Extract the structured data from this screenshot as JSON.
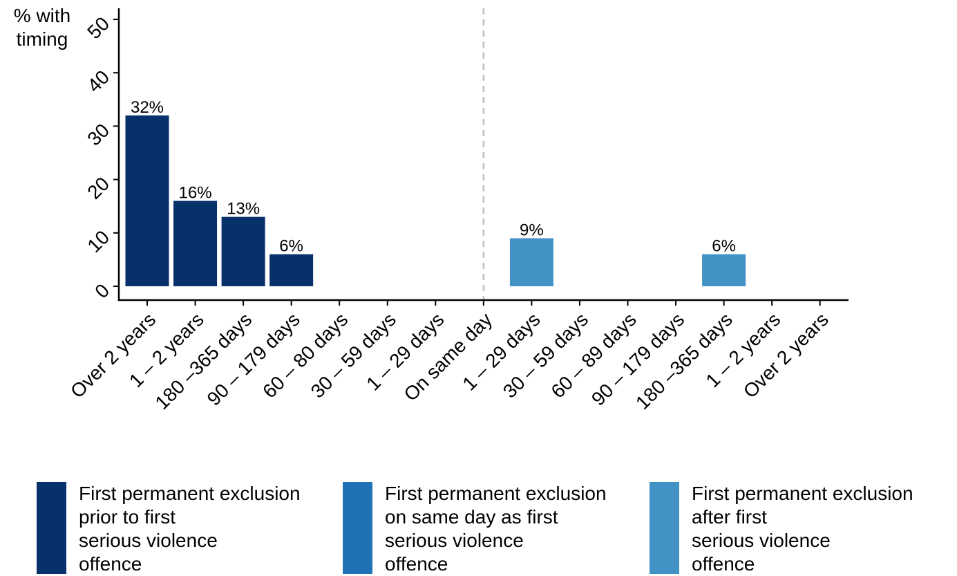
{
  "chart_data": {
    "type": "bar",
    "ylabel": "% with timing",
    "ylim": [
      0,
      52
    ],
    "yticks": [
      0,
      10,
      20,
      30,
      40,
      50
    ],
    "categories": [
      "Over 2 years",
      "1 – 2 years",
      "180 –365 days",
      "90 – 179 days",
      "60 – 80 days",
      "30 – 59 days",
      "1 – 29 days",
      "On same day",
      "1 – 29 days",
      "30 – 59 days",
      "60 – 89 days",
      "90 – 179 days",
      "180 –365 days",
      "1 – 2 years",
      "Over 2 years"
    ],
    "divider_category_index": 7,
    "series": [
      {
        "name": "First permanent exclusion prior to first serious violence offence",
        "color": "#08306b",
        "values": [
          32,
          16,
          13,
          6,
          null,
          null,
          null,
          null,
          null,
          null,
          null,
          null,
          null,
          null,
          null
        ],
        "labels": [
          "32%",
          "16%",
          "13%",
          "6%",
          null,
          null,
          null,
          null,
          null,
          null,
          null,
          null,
          null,
          null,
          null
        ]
      },
      {
        "name": "First permanent exclusion on same day as first serious violence offence",
        "color": "#2171b5",
        "values": [
          null,
          null,
          null,
          null,
          null,
          null,
          null,
          null,
          null,
          null,
          null,
          null,
          null,
          null,
          null
        ],
        "labels": [
          null,
          null,
          null,
          null,
          null,
          null,
          null,
          null,
          null,
          null,
          null,
          null,
          null,
          null,
          null
        ]
      },
      {
        "name": "First permanent exclusion after first serious violence offence",
        "color": "#4292c6",
        "values": [
          null,
          null,
          null,
          null,
          null,
          null,
          null,
          null,
          9,
          null,
          null,
          null,
          6,
          null,
          null
        ],
        "labels": [
          null,
          null,
          null,
          null,
          null,
          null,
          null,
          null,
          "9%",
          null,
          null,
          null,
          "6%",
          null,
          null
        ]
      }
    ],
    "legend": {
      "position": "bottom",
      "items": [
        {
          "lines": [
            "First permanent exclusion",
            "prior to first",
            "serious violence",
            "offence"
          ],
          "color": "#08306b"
        },
        {
          "lines": [
            "First permanent exclusion",
            "on same day as first",
            "serious violence",
            "offence"
          ],
          "color": "#2171b5"
        },
        {
          "lines": [
            "First permanent exclusion",
            "after first",
            "serious violence",
            "offence"
          ],
          "color": "#4292c6"
        }
      ]
    },
    "grid": false
  },
  "ylabel_lines": [
    "% with",
    "timing"
  ]
}
